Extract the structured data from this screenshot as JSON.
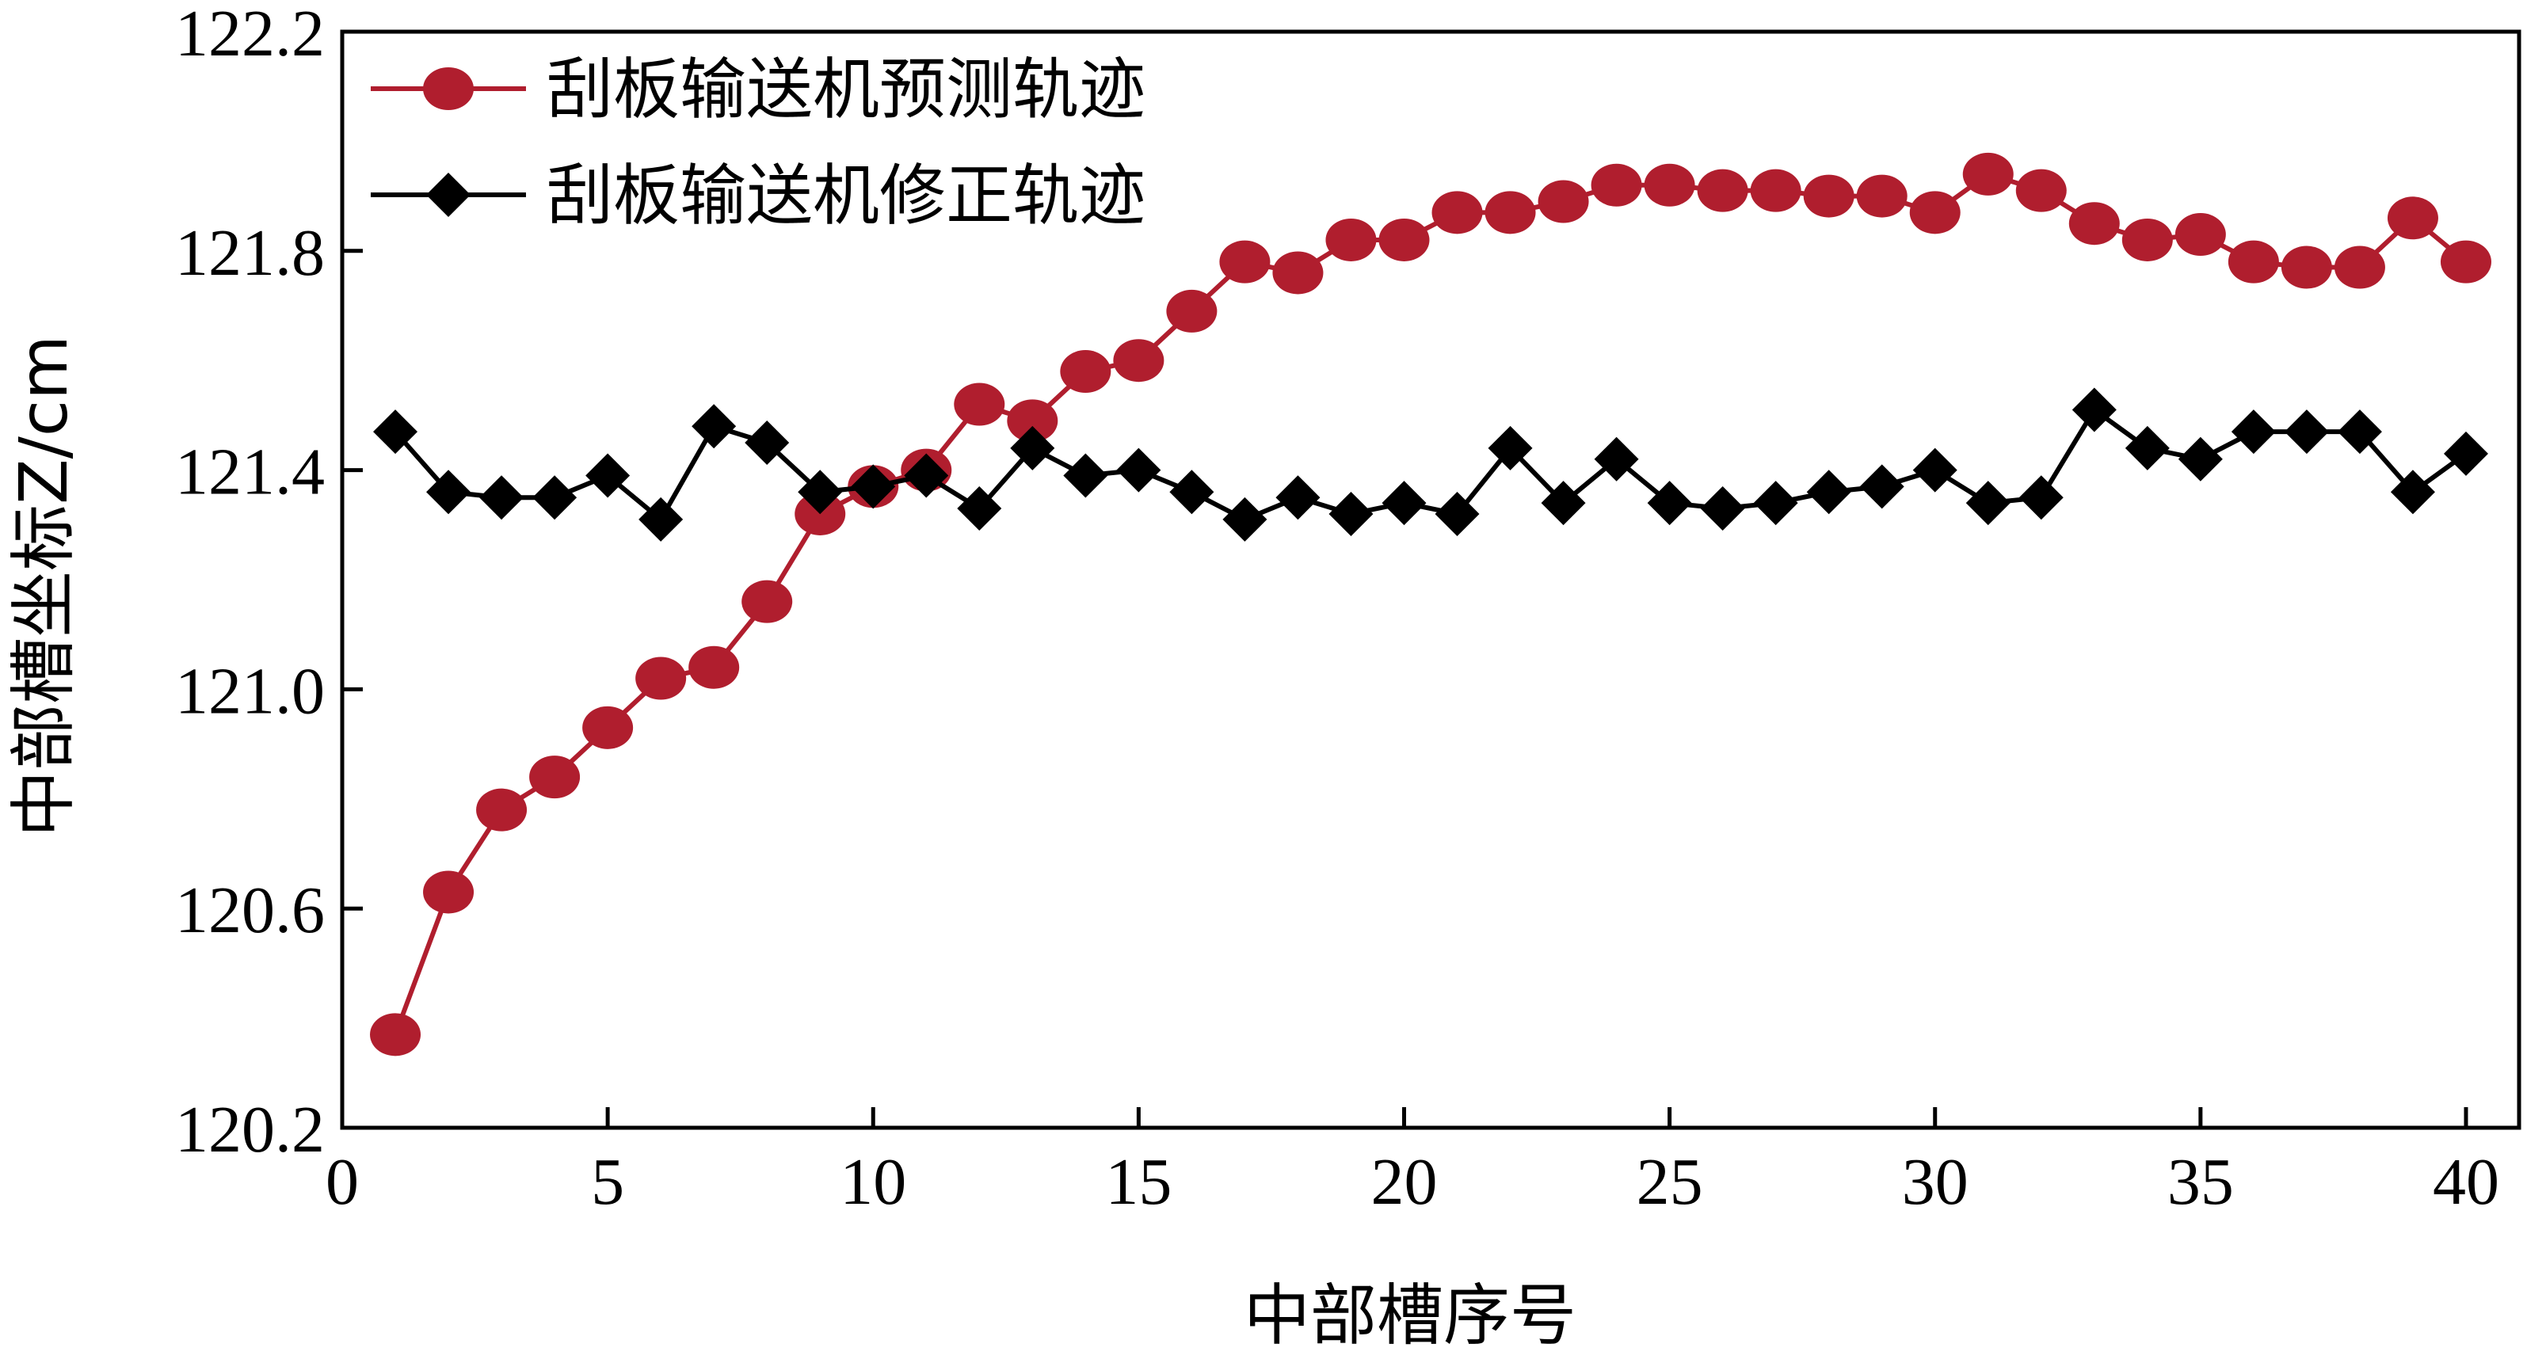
{
  "chart_data": {
    "type": "line",
    "xlabel": "中部槽序号",
    "ylabel": "中部槽坐标Z/cm",
    "xlim": [
      0,
      41
    ],
    "ylim": [
      120.2,
      122.2
    ],
    "x_ticks": [
      "0",
      "5",
      "10",
      "15",
      "20",
      "25",
      "30",
      "35",
      "40"
    ],
    "y_ticks": [
      "120.2",
      "120.6",
      "121.0",
      "121.4",
      "121.8",
      "122.2"
    ],
    "grid": false,
    "legend_position": "top-left",
    "x": [
      1,
      2,
      3,
      4,
      5,
      6,
      7,
      8,
      9,
      10,
      11,
      12,
      13,
      14,
      15,
      16,
      17,
      18,
      19,
      20,
      21,
      22,
      23,
      24,
      25,
      26,
      27,
      28,
      29,
      30,
      31,
      32,
      33,
      34,
      35,
      36,
      37,
      38,
      39,
      40
    ],
    "series": [
      {
        "name": "刮板输送机预测轨迹",
        "color": "#b01e2e",
        "marker": "circle",
        "values": [
          120.37,
          120.63,
          120.78,
          120.84,
          120.93,
          121.02,
          121.04,
          121.16,
          121.32,
          121.37,
          121.4,
          121.52,
          121.49,
          121.58,
          121.6,
          121.69,
          121.78,
          121.76,
          121.82,
          121.82,
          121.87,
          121.87,
          121.89,
          121.92,
          121.92,
          121.91,
          121.91,
          121.9,
          121.9,
          121.87,
          121.94,
          121.91,
          121.85,
          121.82,
          121.83,
          121.78,
          121.77,
          121.77,
          121.86,
          121.78
        ]
      },
      {
        "name": "刮板输送机修正轨迹",
        "color": "#000000",
        "marker": "diamond",
        "values": [
          121.47,
          121.36,
          121.35,
          121.35,
          121.39,
          121.31,
          121.48,
          121.45,
          121.36,
          121.37,
          121.39,
          121.33,
          121.44,
          121.39,
          121.4,
          121.36,
          121.31,
          121.35,
          121.32,
          121.34,
          121.32,
          121.44,
          121.34,
          121.42,
          121.34,
          121.33,
          121.34,
          121.36,
          121.37,
          121.4,
          121.34,
          121.35,
          121.51,
          121.44,
          121.42,
          121.47,
          121.47,
          121.47,
          121.36,
          121.43
        ]
      }
    ]
  }
}
